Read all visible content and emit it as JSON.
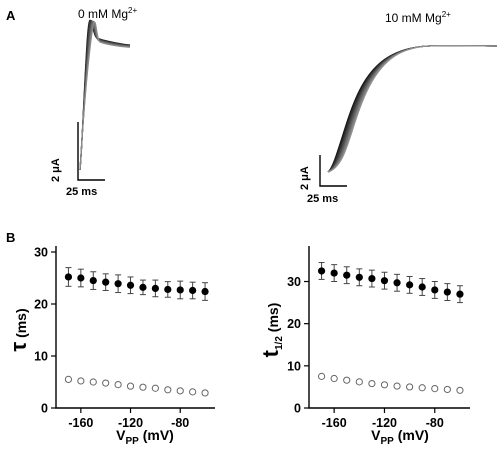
{
  "panels": {
    "A": "A",
    "B": "B"
  },
  "traces": {
    "left": {
      "condition": "0 mM Mg",
      "superscript": "2+",
      "scale_current": "2 μA",
      "scale_time": "25 ms"
    },
    "right": {
      "condition": "10 mM Mg",
      "superscript": "2+",
      "scale_current": "2 μA",
      "scale_time": "25 ms"
    }
  },
  "chart_data": [
    {
      "type": "scatter",
      "title": "",
      "xlabel": "V_PP (mV)",
      "ylabel": "τ (ms)",
      "ylabel_symbol": "τ",
      "ylabel_sub": "",
      "ylabel_unit": " (ms)",
      "xlabel_main": "V",
      "xlabel_sub": "PP",
      "xlabel_unit": " (mV)",
      "xlim": [
        -180,
        -52
      ],
      "ylim": [
        0,
        30
      ],
      "xticks": [
        -160,
        -120,
        -80
      ],
      "yticks": [
        0,
        10,
        20,
        30
      ],
      "x": [
        -170,
        -160,
        -150,
        -140,
        -130,
        -120,
        -110,
        -100,
        -90,
        -80,
        -70,
        -60
      ],
      "series": [
        {
          "marker": "filled-circle",
          "values": [
            25.2,
            25.0,
            24.5,
            24.2,
            23.9,
            23.6,
            23.2,
            23.0,
            22.8,
            22.7,
            22.6,
            22.4
          ],
          "errors": [
            1.8,
            1.7,
            1.7,
            1.6,
            1.7,
            1.6,
            1.4,
            1.6,
            1.5,
            1.7,
            1.6,
            1.7
          ]
        },
        {
          "marker": "open-circle",
          "values": [
            5.5,
            5.2,
            5.0,
            4.8,
            4.5,
            4.2,
            4.0,
            3.8,
            3.5,
            3.3,
            3.1,
            2.9
          ],
          "errors": [
            0,
            0,
            0,
            0,
            0,
            0,
            0,
            0,
            0,
            0,
            0,
            0
          ]
        }
      ]
    },
    {
      "type": "scatter",
      "title": "",
      "xlabel": "V_PP (mV)",
      "ylabel": "t_1/2 (ms)",
      "ylabel_symbol": "t",
      "ylabel_sub": "1/2",
      "ylabel_unit": " (ms)",
      "xlabel_main": "V",
      "xlabel_sub": "PP",
      "xlabel_unit": " (mV)",
      "xlim": [
        -180,
        -52
      ],
      "ylim": [
        0,
        37
      ],
      "xticks": [
        -160,
        -120,
        -80
      ],
      "yticks": [
        0,
        10,
        20,
        30
      ],
      "x": [
        -170,
        -160,
        -150,
        -140,
        -130,
        -120,
        -110,
        -100,
        -90,
        -80,
        -70,
        -60
      ],
      "series": [
        {
          "marker": "filled-circle",
          "values": [
            32.5,
            32.0,
            31.5,
            31.0,
            30.7,
            30.2,
            29.7,
            29.2,
            28.7,
            28.0,
            27.5,
            27.0
          ],
          "errors": [
            2.0,
            2.0,
            2.0,
            2.0,
            2.0,
            2.0,
            2.0,
            2.0,
            2.0,
            2.0,
            2.0,
            2.0
          ]
        },
        {
          "marker": "open-circle",
          "values": [
            7.5,
            7.0,
            6.6,
            6.2,
            5.8,
            5.5,
            5.2,
            5.0,
            4.8,
            4.6,
            4.4,
            4.2
          ],
          "errors": [
            0,
            0,
            0,
            0,
            0,
            0,
            0,
            0,
            0,
            0,
            0,
            0
          ]
        }
      ]
    }
  ]
}
